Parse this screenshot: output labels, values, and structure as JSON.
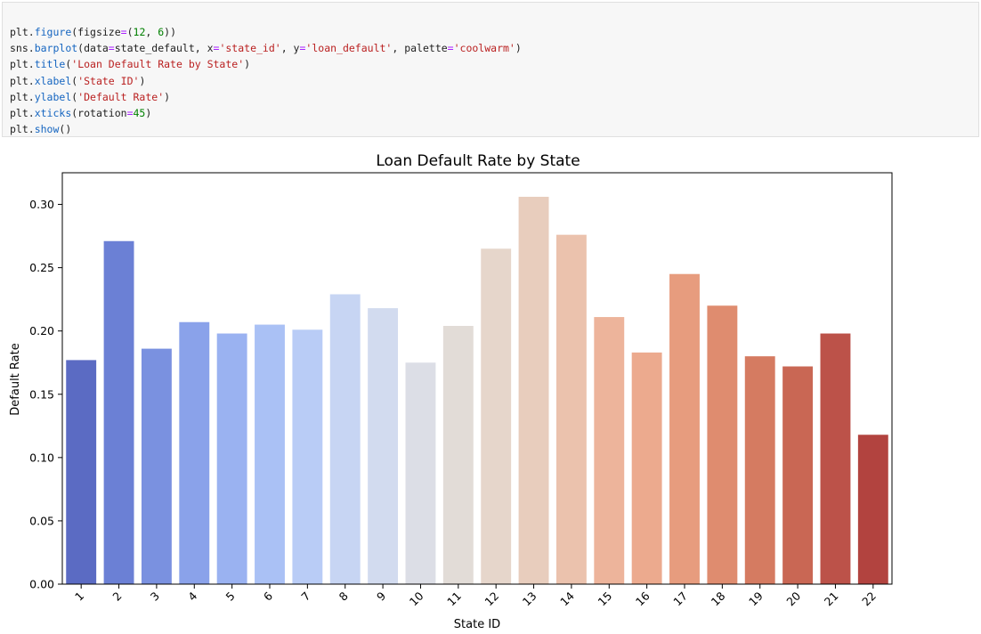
{
  "code_cell": {
    "lines": [
      [
        {
          "t": "plt.",
          "c": ""
        },
        {
          "t": "figure",
          "c": "tk-attr"
        },
        {
          "t": "(figsize",
          "c": ""
        },
        {
          "t": "=",
          "c": "tk-op"
        },
        {
          "t": "(",
          "c": ""
        },
        {
          "t": "12",
          "c": "tk-num"
        },
        {
          "t": ", ",
          "c": ""
        },
        {
          "t": "6",
          "c": "tk-num"
        },
        {
          "t": "))",
          "c": ""
        }
      ],
      [
        {
          "t": "sns.",
          "c": ""
        },
        {
          "t": "barplot",
          "c": "tk-attr"
        },
        {
          "t": "(data",
          "c": ""
        },
        {
          "t": "=",
          "c": "tk-op"
        },
        {
          "t": "state_default, x",
          "c": ""
        },
        {
          "t": "=",
          "c": "tk-op"
        },
        {
          "t": "'state_id'",
          "c": "tk-str"
        },
        {
          "t": ", y",
          "c": ""
        },
        {
          "t": "=",
          "c": "tk-op"
        },
        {
          "t": "'loan_default'",
          "c": "tk-str"
        },
        {
          "t": ", palette",
          "c": ""
        },
        {
          "t": "=",
          "c": "tk-op"
        },
        {
          "t": "'coolwarm'",
          "c": "tk-str"
        },
        {
          "t": ")",
          "c": ""
        }
      ],
      [
        {
          "t": "plt.",
          "c": ""
        },
        {
          "t": "title",
          "c": "tk-attr"
        },
        {
          "t": "(",
          "c": ""
        },
        {
          "t": "'Loan Default Rate by State'",
          "c": "tk-str"
        },
        {
          "t": ")",
          "c": ""
        }
      ],
      [
        {
          "t": "plt.",
          "c": ""
        },
        {
          "t": "xlabel",
          "c": "tk-attr"
        },
        {
          "t": "(",
          "c": ""
        },
        {
          "t": "'State ID'",
          "c": "tk-str"
        },
        {
          "t": ")",
          "c": ""
        }
      ],
      [
        {
          "t": "plt.",
          "c": ""
        },
        {
          "t": "ylabel",
          "c": "tk-attr"
        },
        {
          "t": "(",
          "c": ""
        },
        {
          "t": "'Default Rate'",
          "c": "tk-str"
        },
        {
          "t": ")",
          "c": ""
        }
      ],
      [
        {
          "t": "plt.",
          "c": ""
        },
        {
          "t": "xticks",
          "c": "tk-attr"
        },
        {
          "t": "(rotation",
          "c": ""
        },
        {
          "t": "=",
          "c": "tk-op"
        },
        {
          "t": "45",
          "c": "tk-num"
        },
        {
          "t": ")",
          "c": ""
        }
      ],
      [
        {
          "t": "plt.",
          "c": ""
        },
        {
          "t": "show",
          "c": "tk-attr"
        },
        {
          "t": "()",
          "c": ""
        }
      ]
    ]
  },
  "chart_data": {
    "type": "bar",
    "title": "Loan Default Rate by State",
    "xlabel": "State ID",
    "ylabel": "Default Rate",
    "categories": [
      "1",
      "2",
      "3",
      "4",
      "5",
      "6",
      "7",
      "8",
      "9",
      "10",
      "11",
      "12",
      "13",
      "14",
      "15",
      "16",
      "17",
      "18",
      "19",
      "20",
      "21",
      "22"
    ],
    "values": [
      0.177,
      0.271,
      0.186,
      0.207,
      0.198,
      0.205,
      0.201,
      0.229,
      0.218,
      0.175,
      0.204,
      0.265,
      0.306,
      0.276,
      0.211,
      0.183,
      0.245,
      0.22,
      0.18,
      0.172,
      0.198,
      0.118
    ],
    "ylim": [
      0,
      0.325
    ],
    "yticks": [
      "0.00",
      "0.05",
      "0.10",
      "0.15",
      "0.20",
      "0.25",
      "0.30"
    ],
    "xtick_rotation": 45,
    "grid": false,
    "palette": "coolwarm",
    "colors": [
      "#5b6bc3",
      "#6b80d5",
      "#7a91e0",
      "#8aa2ea",
      "#9ab2f1",
      "#aac1f5",
      "#b9ccf6",
      "#c7d5f3",
      "#d2dbef",
      "#dcdee6",
      "#e2dcd7",
      "#e6d6cb",
      "#e8cdbd",
      "#ebc2ad",
      "#edb49b",
      "#ecaa8e",
      "#e79c7e",
      "#df8c6f",
      "#d57b61",
      "#c96754",
      "#bc5249",
      "#b2433f"
    ]
  }
}
